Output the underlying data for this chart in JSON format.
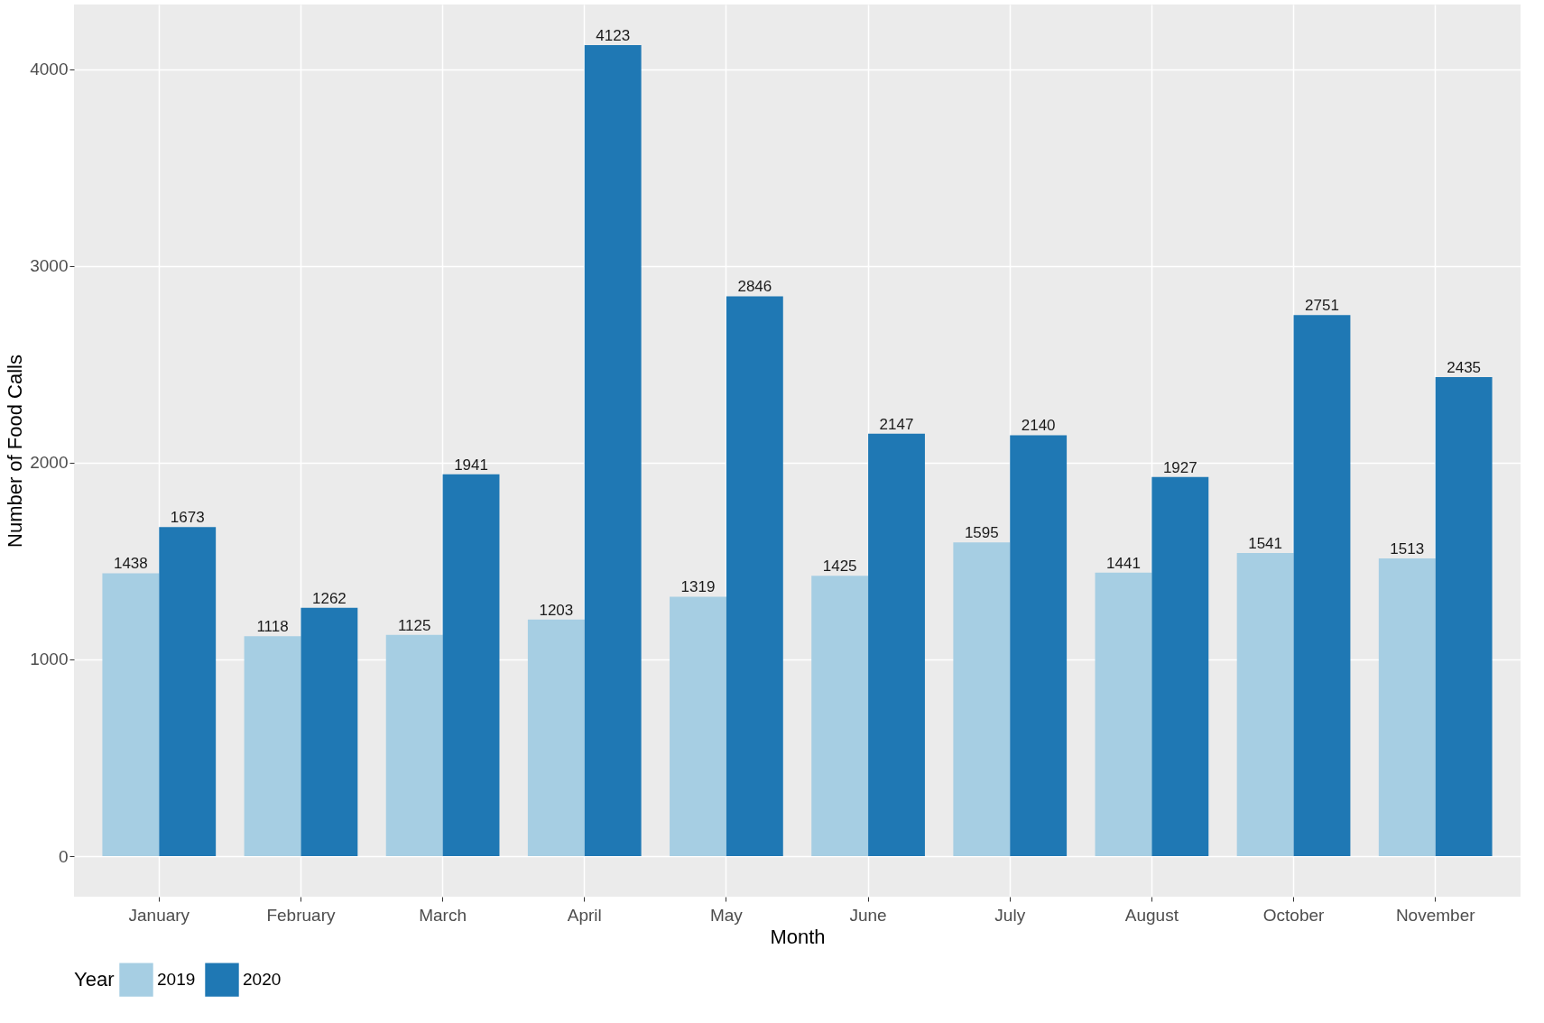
{
  "chart_data": {
    "type": "bar",
    "xlabel": "Month",
    "ylabel": "Number of Food Calls",
    "legend_title": "Year",
    "categories": [
      "January",
      "February",
      "March",
      "April",
      "May",
      "June",
      "July",
      "August",
      "October",
      "November"
    ],
    "series": [
      {
        "name": "2019",
        "color": "#a6cee3",
        "values": [
          1438,
          1118,
          1125,
          1203,
          1319,
          1425,
          1595,
          1441,
          1541,
          1513
        ]
      },
      {
        "name": "2020",
        "color": "#1f78b4",
        "values": [
          1673,
          1262,
          1941,
          4123,
          2846,
          2147,
          2140,
          1927,
          2751,
          2435
        ]
      }
    ],
    "ylim": [
      -206,
      4329
    ],
    "yticks": [
      0,
      1000,
      2000,
      3000,
      4000
    ],
    "grid": true,
    "legend": "bottom",
    "data_labels": true
  }
}
